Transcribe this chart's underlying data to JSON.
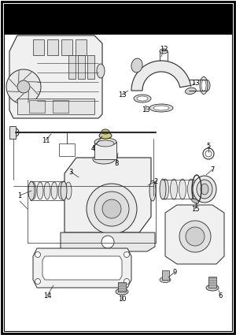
{
  "bg_color": "#ffffff",
  "border_color": "#000000",
  "fig_width": 3.0,
  "fig_height": 4.25,
  "dpi": 100,
  "lc": "#2a2a2a",
  "fc": "#f5f5f5",
  "fc2": "#e8e8e8"
}
